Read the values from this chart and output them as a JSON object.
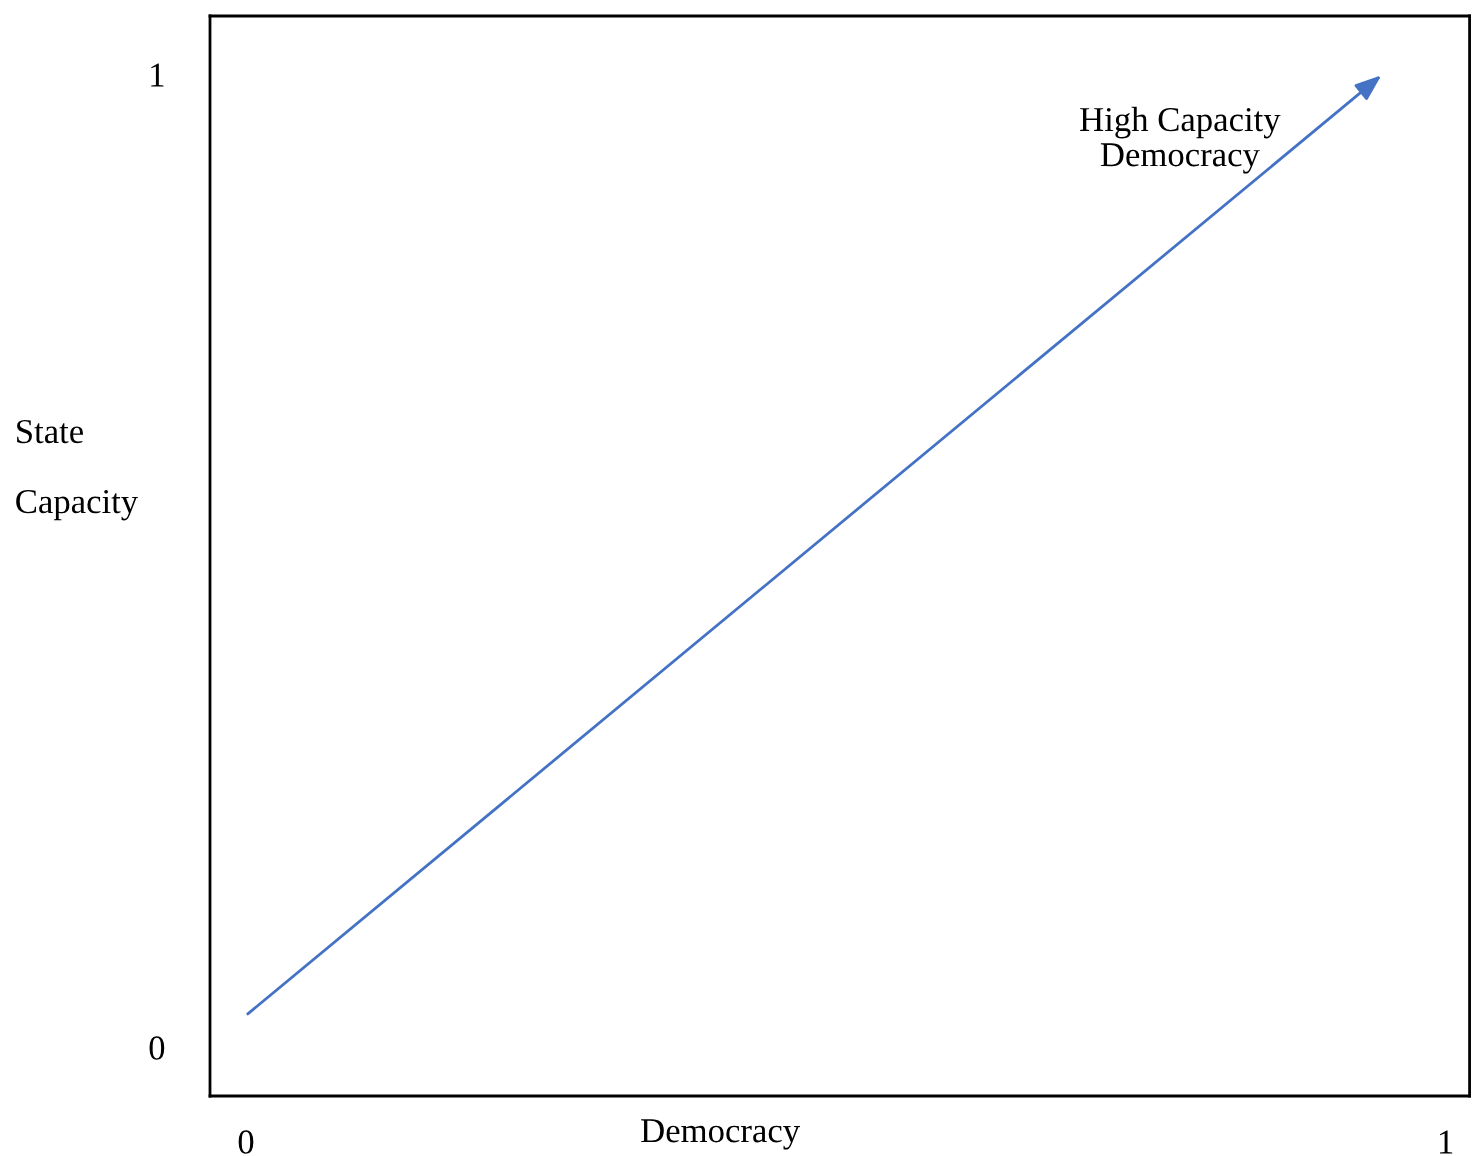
{
  "chart_data": {
    "type": "line",
    "xlabel": "Democracy",
    "ylabel": "State Capacity",
    "xlim": [
      -0.03,
      1.02
    ],
    "ylim": [
      -0.05,
      1.06
    ],
    "xticks": [
      0,
      1
    ],
    "yticks": [
      0,
      1
    ],
    "annotations": [
      "High Capacity Democracy"
    ],
    "grid": false,
    "legend": false
  }
}
